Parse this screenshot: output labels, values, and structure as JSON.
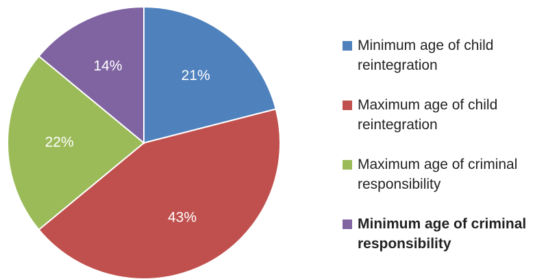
{
  "chart_data": {
    "type": "pie",
    "categories": [
      "Minimum age of child reintegration",
      "Maximum age of child reintegration",
      "Maximum age of criminal responsibility",
      "Minimum age of criminal responsibility"
    ],
    "values": [
      21,
      43,
      22,
      14
    ],
    "value_labels": [
      "21%",
      "43%",
      "22%",
      "14%"
    ],
    "colors": [
      "#4f81bd",
      "#c0504d",
      "#9bbb59",
      "#8064a2"
    ],
    "legend": "right",
    "legend_bold": [
      false,
      false,
      false,
      true
    ]
  }
}
